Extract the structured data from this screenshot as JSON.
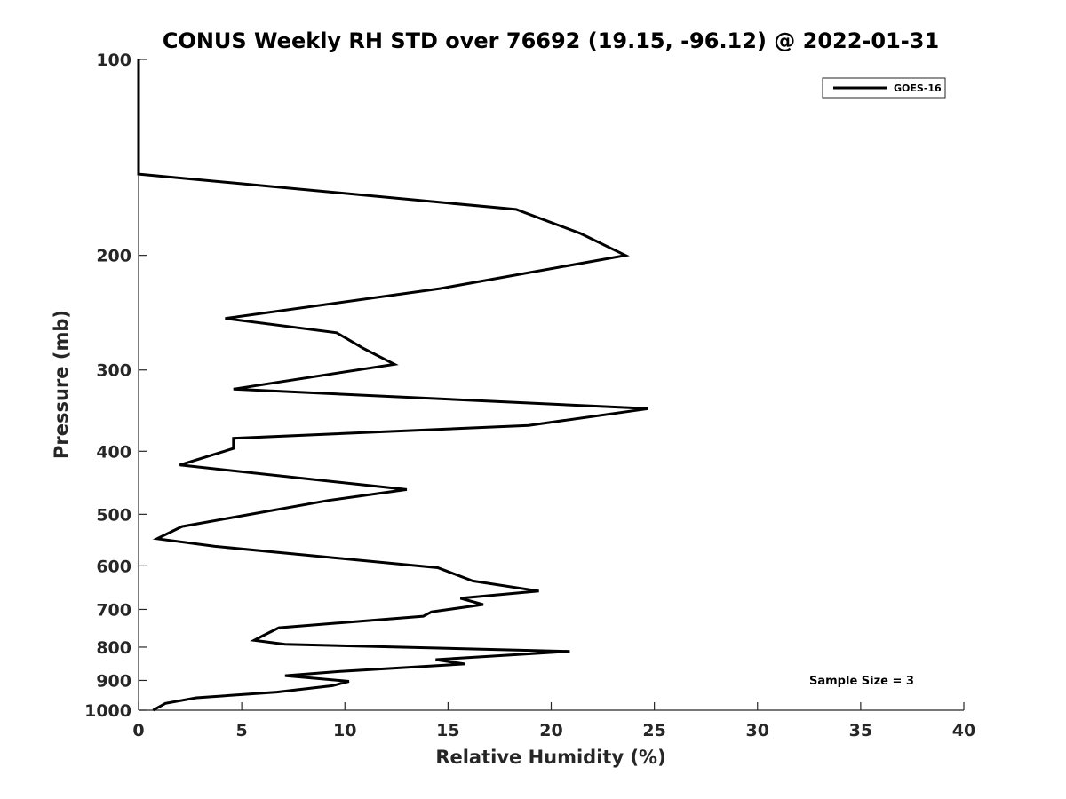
{
  "chart_data": {
    "type": "line",
    "title": "CONUS Weekly RH STD over 76692 (19.15, -96.12) @ 2022-01-31",
    "xlabel": "Relative Humidity (%)",
    "ylabel": "Pressure (mb)",
    "xlim": [
      0,
      40
    ],
    "ylim": [
      100,
      1000
    ],
    "y_scale": "log",
    "y_reversed": true,
    "x_ticks": [
      0,
      5,
      10,
      15,
      20,
      25,
      30,
      35,
      40
    ],
    "y_ticks": [
      100,
      200,
      300,
      400,
      500,
      600,
      700,
      800,
      900,
      1000
    ],
    "grid": false,
    "legend_position": "top-right",
    "series": [
      {
        "name": "GOES-16",
        "color": "#000000",
        "x": [
          0,
          0,
          18.3,
          21.4,
          23.6,
          14.6,
          4.2,
          9.6,
          10.9,
          12.4,
          4.6,
          24.7,
          18.9,
          4.6,
          4.6,
          2.0,
          13.0,
          9.2,
          2.1,
          0.9,
          3.7,
          14.5,
          16.2,
          19.4,
          15.6,
          16.7,
          14.2,
          13.8,
          6.8,
          6.0,
          5.6,
          7.1,
          20.9,
          14.4,
          15.8,
          9.7,
          7.1,
          10.2,
          9.4,
          6.7,
          2.8,
          1.3,
          0.7
        ],
        "y": [
          100,
          150,
          170,
          185,
          200,
          225,
          250,
          263,
          278,
          294,
          321,
          344,
          365,
          382,
          396,
          420,
          458,
          476,
          522,
          545,
          560,
          604,
          633,
          656,
          673,
          688,
          706,
          717,
          747,
          769,
          781,
          792,
          812,
          836,
          849,
          872,
          885,
          903,
          917,
          938,
          957,
          976,
          1000
        ]
      }
    ],
    "annotation": "Sample Size = 3"
  }
}
